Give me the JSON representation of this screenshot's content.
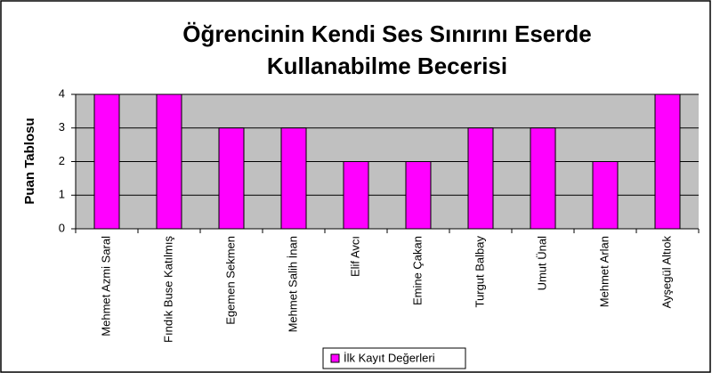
{
  "chart_data": {
    "type": "bar",
    "title": [
      "Öğrencinin Kendi Ses Sınırını Eserde",
      "Kullanabilme Becerisi"
    ],
    "ylabel": "Puan Tablosu",
    "categories": [
      "Mehmet Azmi Saral",
      "Fındık Buse Katılmış",
      "Egemen Sekmen",
      "Mehmet Salih İnan",
      "Elif Avcı",
      "Emine Çakan",
      "Turgut Balbay",
      "Umut Ünal",
      "Mehmet Arlan",
      "Ayşegül Altıok"
    ],
    "series": [
      {
        "name": "İlk Kayıt Değerleri",
        "color": "#ff00ff",
        "values": [
          4,
          4,
          3,
          3,
          2,
          2,
          3,
          3,
          2,
          4
        ]
      }
    ],
    "ylim": [
      0,
      4
    ],
    "yticks": [
      0,
      1,
      2,
      3,
      4
    ],
    "grid": true,
    "legend": "bottom"
  }
}
